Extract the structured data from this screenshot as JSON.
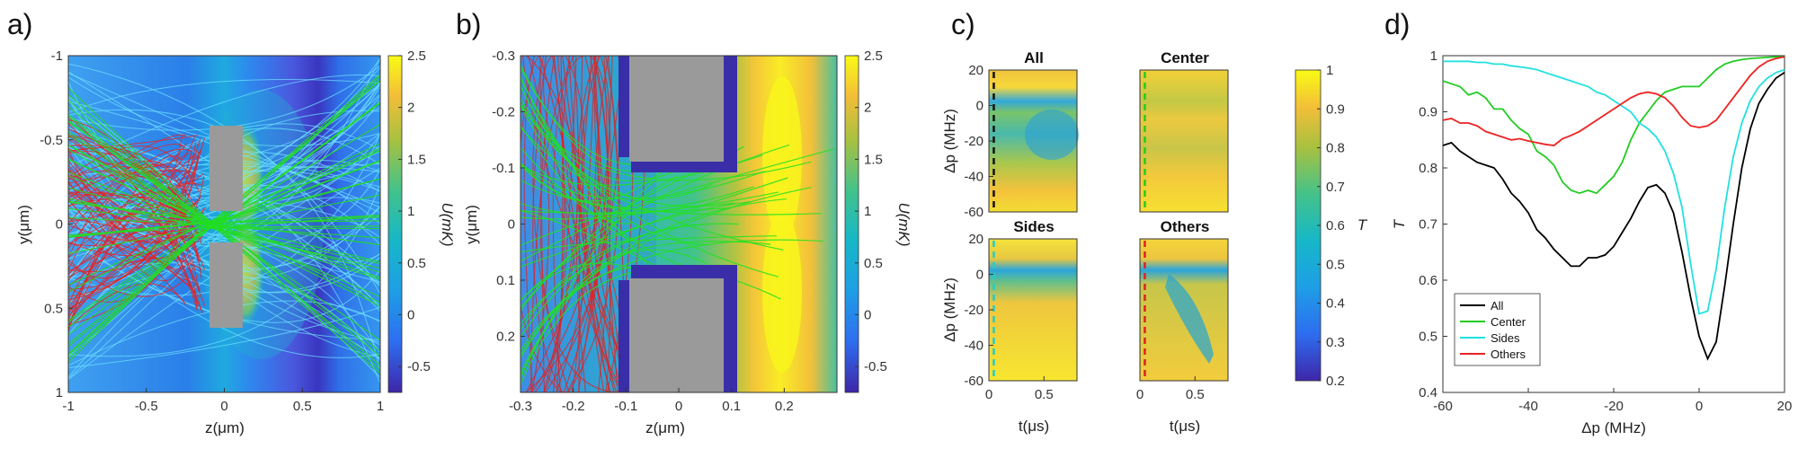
{
  "panel_labels": [
    "a)",
    "b)",
    "c)",
    "d)"
  ],
  "chart_data": [
    {
      "panel": "a)",
      "type": "heatmap",
      "title": "",
      "xlabel": "z(μm)",
      "ylabel": "y(μm)",
      "xlim": [
        -1,
        1
      ],
      "ylim": [
        -1,
        1
      ],
      "y_direction": "reversed",
      "xticks": [
        "-1",
        "-0.5",
        "0",
        "0.5",
        "1"
      ],
      "xtick_values": [
        -1,
        -0.5,
        0,
        0.5,
        1
      ],
      "yticks": [
        "-1",
        "-0.5",
        "0",
        "0.5",
        "1"
      ],
      "ytick_values": [
        -1,
        -0.5,
        0,
        0.5,
        1
      ],
      "colorbar": {
        "label": "U(mK)",
        "range": [
          -0.75,
          2.5
        ],
        "ticks": [
          "2.5",
          "2",
          "1.5",
          "1",
          "0.5",
          "0",
          "-0.5"
        ],
        "tick_values": [
          2.5,
          2,
          1.5,
          1,
          0.5,
          0,
          -0.5
        ]
      },
      "trajectories": [
        "cyan",
        "red",
        "green"
      ]
    },
    {
      "panel": "b)",
      "type": "heatmap",
      "title": "",
      "xlabel": "z(μm)",
      "ylabel": "y(μm)",
      "xlim": [
        -0.3,
        0.3
      ],
      "ylim": [
        -0.3,
        0.3
      ],
      "y_direction": "reversed",
      "xticks": [
        "-0.3",
        "-0.2",
        "-0.1",
        "0",
        "0.1",
        "0.2"
      ],
      "xtick_values": [
        -0.3,
        -0.2,
        -0.1,
        0,
        0.1,
        0.2
      ],
      "yticks": [
        "-0.3",
        "-0.2",
        "-0.1",
        "0",
        "0.1",
        "0.2"
      ],
      "ytick_values": [
        -0.3,
        -0.2,
        -0.1,
        0,
        0.1,
        0.2
      ],
      "colorbar": {
        "label": "U(mK)",
        "range": [
          -0.75,
          2.5
        ],
        "ticks": [
          "2.5",
          "2",
          "1.5",
          "1",
          "0.5",
          "0",
          "-0.5"
        ],
        "tick_values": [
          2.5,
          2,
          1.5,
          1,
          0.5,
          0,
          -0.5
        ]
      },
      "trajectories": [
        "red",
        "green"
      ]
    },
    {
      "panel": "c)",
      "type": "heatmap",
      "subplots": [
        "All",
        "Center",
        "Sides",
        "Others"
      ],
      "xlabel": "t(μs)",
      "ylabel": "Δp (MHz)",
      "xlim": [
        0,
        0.8
      ],
      "ylim": [
        -60,
        20
      ],
      "xticks": [
        "0",
        "0.5"
      ],
      "xtick_values": [
        0,
        0.5
      ],
      "yticks": [
        "20",
        "0",
        "-20",
        "-40",
        "-60"
      ],
      "ytick_values": [
        20,
        0,
        -20,
        -40,
        -60
      ],
      "colorbar": {
        "label": "T",
        "range": [
          0.2,
          1
        ],
        "ticks": [
          "1",
          "0.9",
          "0.8",
          "0.7",
          "0.6",
          "0.5",
          "0.4",
          "0.3",
          "0.2"
        ],
        "tick_values": [
          1,
          0.9,
          0.8,
          0.7,
          0.6,
          0.5,
          0.4,
          0.3,
          0.2
        ]
      },
      "marker_colors": [
        "#111111",
        "#22cc22",
        "#22cccc",
        "#dd2222"
      ]
    },
    {
      "panel": "d)",
      "type": "line",
      "xlabel": "Δp (MHz)",
      "ylabel": "T",
      "xlim": [
        -60,
        20
      ],
      "ylim": [
        0.4,
        1
      ],
      "xticks": [
        "-60",
        "-40",
        "-20",
        "0",
        "20"
      ],
      "xtick_values": [
        -60,
        -40,
        -20,
        0,
        20
      ],
      "yticks": [
        "1",
        "0.9",
        "0.8",
        "0.7",
        "0.6",
        "0.5",
        "0.4"
      ],
      "ytick_values": [
        1,
        0.9,
        0.8,
        0.7,
        0.6,
        0.5,
        0.4
      ],
      "legend_position": "bottom-left",
      "x": [
        -60,
        -58,
        -56,
        -54,
        -52,
        -50,
        -48,
        -46,
        -44,
        -42,
        -40,
        -38,
        -36,
        -34,
        -32,
        -30,
        -28,
        -26,
        -24,
        -22,
        -20,
        -18,
        -16,
        -14,
        -12,
        -10,
        -8,
        -6,
        -4,
        -2,
        0,
        2,
        4,
        6,
        8,
        10,
        12,
        14,
        16,
        18,
        20
      ],
      "series": [
        {
          "name": "All",
          "color": "#000000",
          "values": [
            0.84,
            0.845,
            0.83,
            0.82,
            0.81,
            0.805,
            0.8,
            0.78,
            0.755,
            0.74,
            0.72,
            0.69,
            0.675,
            0.655,
            0.64,
            0.625,
            0.625,
            0.64,
            0.64,
            0.645,
            0.66,
            0.685,
            0.71,
            0.74,
            0.765,
            0.77,
            0.755,
            0.72,
            0.65,
            0.57,
            0.5,
            0.46,
            0.49,
            0.59,
            0.7,
            0.8,
            0.87,
            0.915,
            0.94,
            0.96,
            0.97
          ]
        },
        {
          "name": "Center",
          "color": "#22cc22",
          "values": [
            0.955,
            0.95,
            0.945,
            0.93,
            0.935,
            0.925,
            0.905,
            0.905,
            0.885,
            0.87,
            0.86,
            0.83,
            0.82,
            0.805,
            0.775,
            0.76,
            0.755,
            0.76,
            0.755,
            0.77,
            0.785,
            0.81,
            0.85,
            0.88,
            0.9,
            0.92,
            0.935,
            0.94,
            0.945,
            0.945,
            0.945,
            0.96,
            0.975,
            0.985,
            0.99,
            0.993,
            0.995,
            0.996,
            0.997,
            0.998,
            0.998
          ]
        },
        {
          "name": "Sides",
          "color": "#22e0e0",
          "values": [
            0.99,
            0.99,
            0.99,
            0.99,
            0.988,
            0.988,
            0.985,
            0.985,
            0.982,
            0.98,
            0.978,
            0.975,
            0.97,
            0.965,
            0.96,
            0.955,
            0.95,
            0.945,
            0.935,
            0.93,
            0.92,
            0.91,
            0.9,
            0.88,
            0.87,
            0.855,
            0.83,
            0.79,
            0.73,
            0.63,
            0.54,
            0.545,
            0.62,
            0.73,
            0.82,
            0.88,
            0.92,
            0.945,
            0.96,
            0.97,
            0.975
          ]
        },
        {
          "name": "Others",
          "color": "#ee2222",
          "values": [
            0.885,
            0.888,
            0.88,
            0.88,
            0.875,
            0.865,
            0.86,
            0.855,
            0.85,
            0.852,
            0.848,
            0.845,
            0.842,
            0.84,
            0.852,
            0.858,
            0.865,
            0.875,
            0.885,
            0.895,
            0.905,
            0.915,
            0.925,
            0.932,
            0.935,
            0.932,
            0.925,
            0.91,
            0.89,
            0.875,
            0.872,
            0.875,
            0.885,
            0.905,
            0.925,
            0.945,
            0.965,
            0.98,
            0.99,
            0.995,
            0.998
          ]
        }
      ]
    }
  ]
}
